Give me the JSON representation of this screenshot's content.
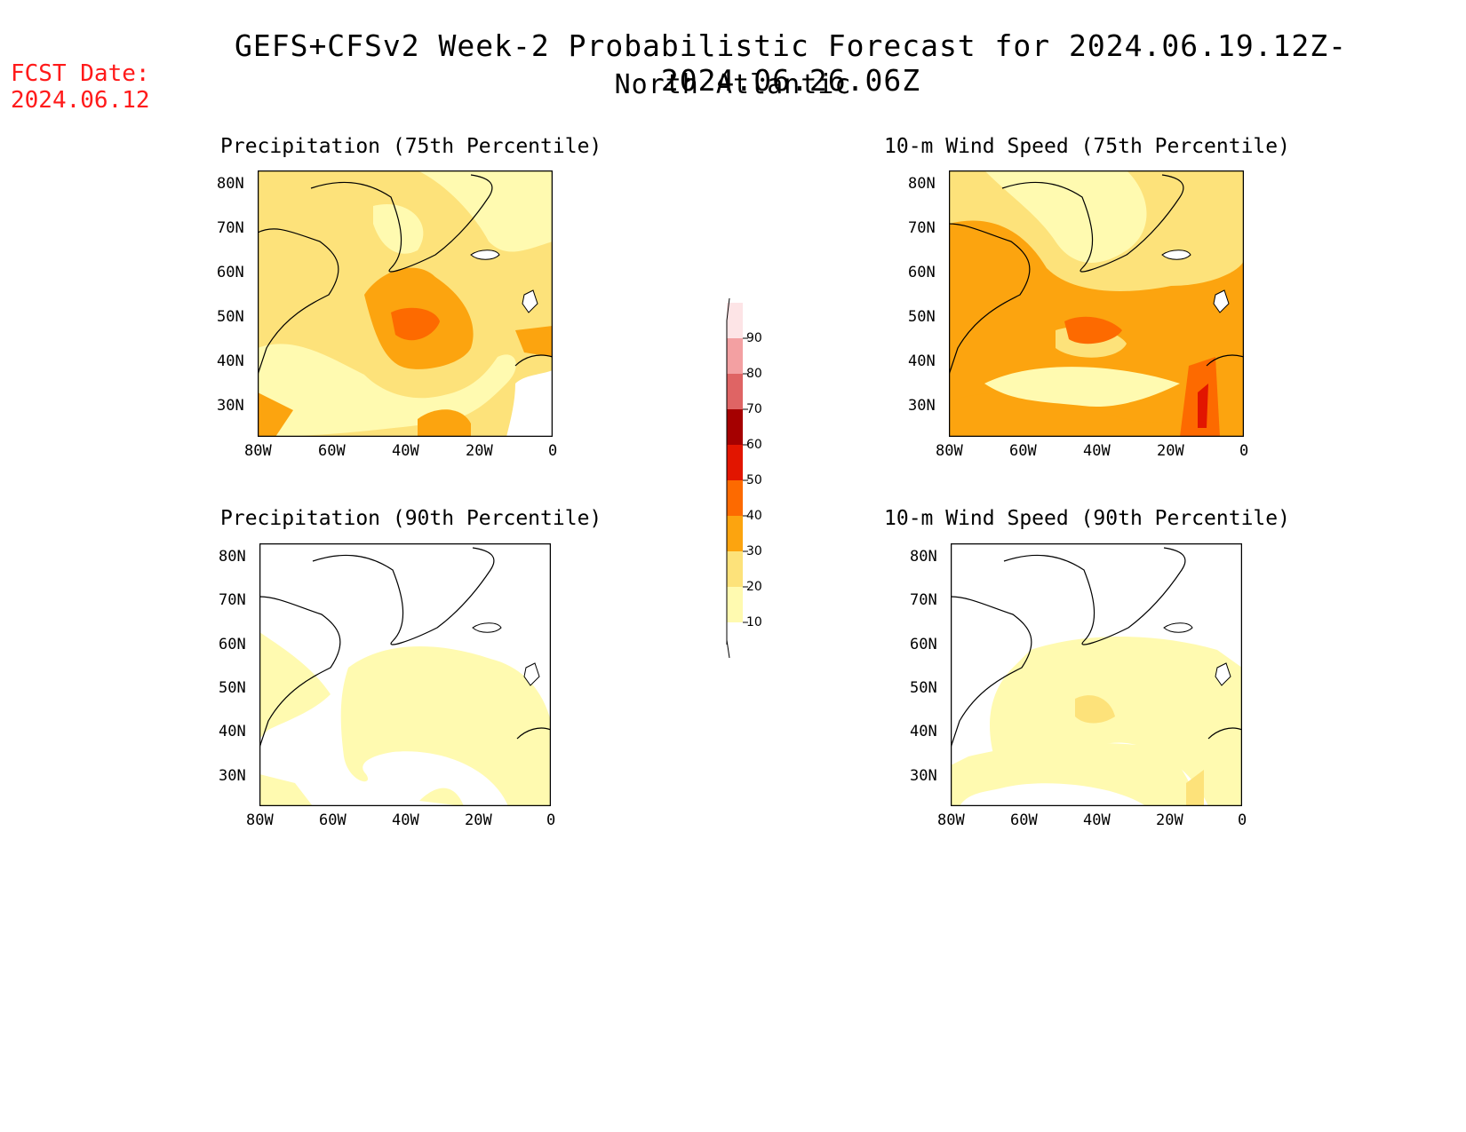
{
  "header": {
    "title": "GEFS+CFSv2 Week-2 Probabilistic Forecast for 2024.06.19.12Z-2024.06.26.06Z",
    "subtitle": "North Atlantic",
    "fcst_label": "FCST Date:",
    "fcst_date": "2024.06.12"
  },
  "panels": [
    {
      "title": "Precipitation (75th Percentile)"
    },
    {
      "title": "10-m Wind Speed (75th Percentile)"
    },
    {
      "title": "Precipitation (90th Percentile)"
    },
    {
      "title": "10-m Wind Speed (90th Percentile)"
    }
  ],
  "axes": {
    "lat_ticks": [
      "80N",
      "70N",
      "60N",
      "50N",
      "40N",
      "30N"
    ],
    "lon_ticks": [
      "80W",
      "60W",
      "40W",
      "20W",
      "0"
    ]
  },
  "colorbar": {
    "levels": [
      "10",
      "20",
      "30",
      "40",
      "50",
      "60",
      "70",
      "80",
      "90"
    ],
    "colors": [
      "#fffab0",
      "#fde27a",
      "#fca40f",
      "#fd6a00",
      "#e21500",
      "#a50000",
      "#df6464",
      "#f3a0a2",
      "#fde4e6"
    ]
  },
  "colors": {
    "c10": "#fffab0",
    "c20": "#fde27a",
    "c30": "#fca40f",
    "c40": "#fd6a00",
    "c50": "#e21500",
    "fcst": "#ff1a1a"
  }
}
